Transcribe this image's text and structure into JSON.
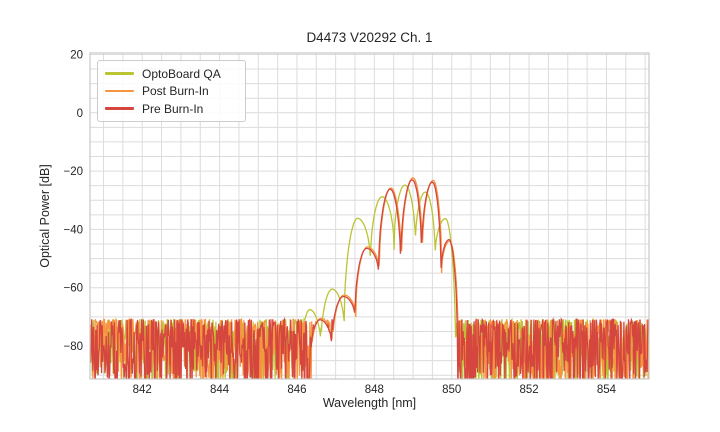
{
  "chart_data": {
    "type": "line",
    "title": "D4473 V20292 Ch. 1",
    "xlabel": "Wavelength [nm]",
    "ylabel": "Optical Power [dB]",
    "xlim": [
      840.65,
      855.1
    ],
    "ylim": [
      -91.3,
      20.5
    ],
    "xticks": [
      842,
      844,
      846,
      848,
      850,
      852,
      854
    ],
    "yticks": [
      20,
      0,
      -20,
      -40,
      -60,
      -80
    ],
    "grid": {
      "x_minor_step": 0.5,
      "y_minor_step": 5,
      "color": "#dcdcdc",
      "frame_color": "#c9c9c9"
    },
    "legend": {
      "position": "upper left"
    },
    "text_color": "#262626",
    "series": [
      {
        "name": "OptoBoard QA",
        "color": "#bcc434",
        "noise": {
          "top": -70.8,
          "depth": 25,
          "pow": 1.7,
          "step": 0.015,
          "seed": 11
        },
        "knots": [
          [
            846.13,
            -83.0
          ],
          [
            846.33,
            -67.5
          ],
          [
            846.62,
            -81.0
          ],
          [
            846.91,
            -60.5
          ],
          [
            847.22,
            -74.0
          ],
          [
            847.57,
            -36.2
          ],
          [
            847.9,
            -52.0
          ],
          [
            848.2,
            -28.8
          ],
          [
            848.51,
            -47.0
          ],
          [
            848.79,
            -24.8
          ],
          [
            849.06,
            -46.0
          ],
          [
            849.32,
            -27.2
          ],
          [
            849.57,
            -50.0
          ],
          [
            849.84,
            -36.3
          ],
          [
            850.1,
            -84.0
          ]
        ]
      },
      {
        "name": "Post Burn-In",
        "color": "#f7943f",
        "noise": {
          "top": -70.8,
          "depth": 25,
          "pow": 1.7,
          "step": 0.015,
          "seed": 22
        },
        "knots": [
          [
            846.38,
            -83.0
          ],
          [
            846.62,
            -70.5
          ],
          [
            846.92,
            -81.0
          ],
          [
            847.22,
            -62.5
          ],
          [
            847.52,
            -70.0
          ],
          [
            847.82,
            -46.0
          ],
          [
            848.13,
            -55.0
          ],
          [
            848.43,
            -25.8
          ],
          [
            848.7,
            -53.5
          ],
          [
            849.0,
            -22.3
          ],
          [
            849.24,
            -50.0
          ],
          [
            849.52,
            -23.2
          ],
          [
            849.74,
            -55.0
          ],
          [
            849.95,
            -44.0
          ],
          [
            850.17,
            -83.0
          ]
        ]
      },
      {
        "name": "Pre Burn-In",
        "color": "#d5463f",
        "noise": {
          "top": -70.8,
          "depth": 25,
          "pow": 1.7,
          "step": 0.015,
          "seed": 33
        },
        "knots": [
          [
            846.36,
            -83.0
          ],
          [
            846.6,
            -71.0
          ],
          [
            846.9,
            -81.0
          ],
          [
            847.2,
            -63.0
          ],
          [
            847.5,
            -70.5
          ],
          [
            847.8,
            -46.5
          ],
          [
            848.11,
            -55.5
          ],
          [
            848.41,
            -26.2
          ],
          [
            848.68,
            -54.0
          ],
          [
            848.98,
            -23.0
          ],
          [
            849.22,
            -50.5
          ],
          [
            849.5,
            -23.8
          ],
          [
            849.72,
            -56.0
          ],
          [
            849.93,
            -43.5
          ],
          [
            850.15,
            -83.0
          ]
        ]
      }
    ]
  }
}
